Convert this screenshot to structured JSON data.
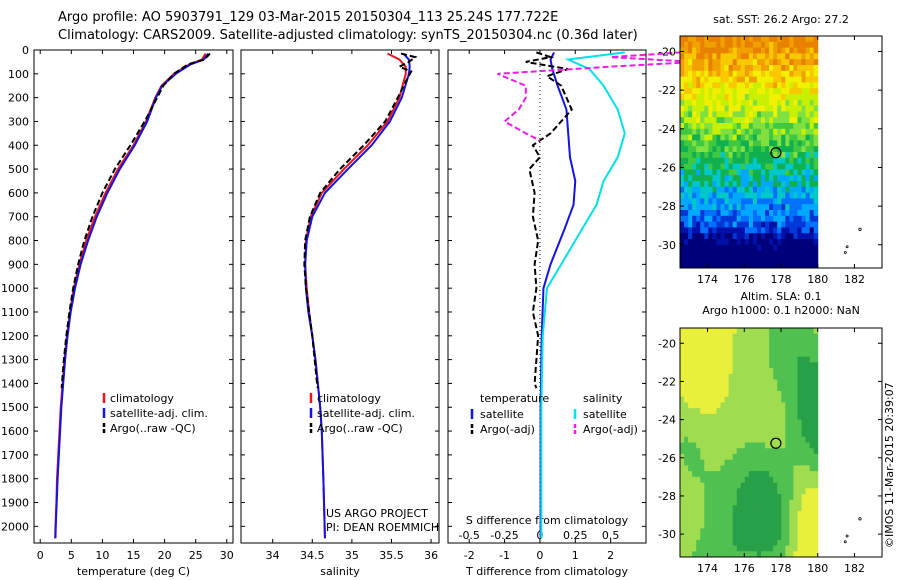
{
  "title": {
    "line1": "Argo profile: AO 5903791_129 03-Mar-2015 20150304_113 25.24S 177.722E",
    "line2": "Climatology: CARS2009. Satellite-adjusted climatology: synTS_20150304.nc (0.36d later)"
  },
  "colors": {
    "climatology": "#e8141e",
    "satellite": "#1414dc",
    "argo": "#000000",
    "sal_satellite": "#00e0e6",
    "sal_argo": "#e61ee6"
  },
  "chart_data": [
    {
      "type": "line",
      "xlabel": "temperature (deg C)",
      "xlim": [
        -1,
        31
      ],
      "xticks": [
        0,
        5,
        10,
        15,
        20,
        25,
        30
      ],
      "ylim": [
        0,
        2070
      ],
      "yticks": [
        0,
        100,
        200,
        300,
        400,
        500,
        600,
        700,
        800,
        900,
        1000,
        1100,
        1200,
        1300,
        1400,
        1500,
        1600,
        1700,
        1800,
        1900,
        2000
      ],
      "legend": [
        "climatology",
        "satellite-adj. clim.",
        "Argo(..raw -QC)"
      ],
      "series": [
        {
          "name": "climatology",
          "y": [
            15,
            40,
            60,
            100,
            150,
            200,
            300,
            400,
            500,
            600,
            700,
            800,
            900,
            1000,
            1100,
            1200,
            1300,
            1400,
            1500,
            1600,
            1700,
            1800,
            1900,
            2000,
            2050
          ],
          "x": [
            26.6,
            26,
            24,
            21.5,
            19.5,
            18.5,
            17,
            15,
            12.5,
            10.5,
            8.8,
            7.4,
            6.3,
            5.4,
            4.8,
            4.3,
            3.9,
            3.6,
            3.3,
            3.1,
            2.9,
            2.7,
            2.6,
            2.45,
            2.4
          ]
        },
        {
          "name": "satellite-adj. clim.",
          "y": [
            15,
            40,
            60,
            100,
            150,
            200,
            300,
            400,
            500,
            600,
            700,
            800,
            900,
            1000,
            1100,
            1200,
            1300,
            1400,
            1500,
            1600,
            1700,
            1800,
            1900,
            2000,
            2050
          ],
          "x": [
            27,
            26.3,
            24.2,
            21.8,
            19.6,
            18.6,
            17.2,
            15.2,
            12.8,
            10.8,
            9.1,
            7.7,
            6.5,
            5.6,
            4.9,
            4.4,
            4,
            3.7,
            3.4,
            3.2,
            3,
            2.8,
            2.65,
            2.5,
            2.45
          ]
        },
        {
          "name": "Argo(..raw -QC)",
          "y": [
            15,
            40,
            60,
            100,
            150,
            200,
            300,
            400,
            500,
            600,
            700,
            800,
            900,
            1000,
            1100,
            1200,
            1300,
            1400,
            1420
          ],
          "x": [
            27.3,
            26.4,
            23.8,
            21.5,
            19.8,
            18.8,
            16.8,
            14.5,
            12,
            10,
            8.4,
            7.1,
            6.1,
            5.3,
            4.7,
            4.2,
            3.8,
            3.5,
            3.45
          ]
        }
      ]
    },
    {
      "type": "line",
      "xlabel": "salinity",
      "xlim": [
        33.6,
        36.1
      ],
      "xticks": [
        34,
        34.5,
        35,
        35.5,
        36
      ],
      "xticklabels": [
        "34",
        "34.5",
        "35",
        "35.5",
        "36"
      ],
      "ylim": [
        0,
        2070
      ],
      "legend": [
        "climatology",
        "satellite-adj. clim.",
        "Argo(..raw -QC)"
      ],
      "series": [
        {
          "name": "climatology",
          "y": [
            15,
            40,
            70,
            100,
            200,
            300,
            400,
            500,
            600,
            700,
            800,
            900,
            1000,
            1100,
            1200,
            1300,
            1400,
            1500,
            1600,
            1800,
            2050
          ],
          "x": [
            35.45,
            35.6,
            35.68,
            35.68,
            35.6,
            35.45,
            35.2,
            34.9,
            34.62,
            34.48,
            34.42,
            34.41,
            34.43,
            34.46,
            34.5,
            34.54,
            34.57,
            34.6,
            34.62,
            34.64,
            34.66
          ]
        },
        {
          "name": "satellite-adj. clim.",
          "y": [
            15,
            40,
            70,
            100,
            200,
            300,
            400,
            500,
            600,
            700,
            800,
            900,
            1000,
            1100,
            1200,
            1300,
            1400,
            1500,
            1600,
            1800,
            2050
          ],
          "x": [
            35.65,
            35.72,
            35.73,
            35.72,
            35.63,
            35.48,
            35.25,
            34.95,
            34.66,
            34.5,
            34.43,
            34.41,
            34.42,
            34.45,
            34.5,
            34.54,
            34.57,
            34.6,
            34.62,
            34.64,
            34.66
          ]
        },
        {
          "name": "Argo(..raw -QC)",
          "y": [
            15,
            30,
            50,
            70,
            90,
            120,
            200,
            300,
            400,
            500,
            600,
            700,
            800,
            900,
            1000,
            1100,
            1200,
            1300,
            1400,
            1420
          ],
          "x": [
            35.62,
            35.8,
            35.72,
            35.6,
            35.75,
            35.7,
            35.58,
            35.42,
            35.15,
            34.85,
            34.6,
            34.47,
            34.41,
            34.4,
            34.42,
            34.46,
            34.5,
            34.53,
            34.56,
            34.57
          ]
        }
      ]
    },
    {
      "type": "line",
      "xlabel": "T difference from climatology",
      "xlabel_top": "S difference from climatology",
      "xlim": [
        -2.6,
        3
      ],
      "xticks": [
        -2,
        -1,
        0,
        1,
        2
      ],
      "xticks_top": [
        -0.5,
        -0.25,
        0,
        0.25,
        0.5
      ],
      "ylim": [
        0,
        2070
      ],
      "legend_headers": [
        "temperature",
        "salinity"
      ],
      "legend": [
        "satellite",
        "Argo(-adj)",
        "satellite",
        "Argo(-adj)"
      ],
      "series": [
        {
          "name": "satellite",
          "y": [
            10,
            40,
            80,
            150,
            250,
            350,
            450,
            550,
            650,
            750,
            900,
            1000,
            1200,
            1500,
            2050
          ],
          "x": [
            0.4,
            0.3,
            0.35,
            0.5,
            0.75,
            0.8,
            0.85,
            1,
            0.95,
            0.7,
            0.3,
            0.1,
            0.05,
            0.02,
            0.02
          ]
        },
        {
          "name": "Argo(-adj)",
          "y": [
            10,
            30,
            50,
            80,
            110,
            150,
            250,
            350,
            400,
            450,
            500,
            600,
            700,
            800,
            900,
            1000,
            1100,
            1200,
            1300,
            1400,
            1420
          ],
          "x": [
            -0.1,
            0.3,
            -0.4,
            0.8,
            0.2,
            0.6,
            0.9,
            0.3,
            -0.2,
            0,
            -0.3,
            -0.15,
            -0.2,
            -0.05,
            -0.15,
            -0.1,
            -0.2,
            -0.05,
            -0.1,
            -0.15,
            -0.1
          ]
        },
        {
          "name": "satellite",
          "y": [
            10,
            40,
            80,
            150,
            250,
            350,
            450,
            550,
            650,
            750,
            900,
            1000,
            1200,
            1500,
            2050
          ],
          "x": [
            0.6,
            0.2,
            0.35,
            0.45,
            0.55,
            0.6,
            0.55,
            0.45,
            0.4,
            0.3,
            0.15,
            0.05,
            0.02,
            0.01,
            0.01
          ]
        },
        {
          "name": "Argo(-adj)",
          "y": [
            10,
            30,
            50,
            70,
            100,
            150,
            200,
            250,
            300,
            350,
            380
          ],
          "x": [
            1,
            0.5,
            1.1,
            0.5,
            -0.3,
            -0.1,
            -0.1,
            -0.15,
            -0.25,
            -0.1,
            0
          ]
        }
      ]
    },
    {
      "type": "heatmap",
      "title": "sat. SST: 26.2 Argo: 27.2",
      "xticks": [
        174,
        176,
        178,
        180,
        182
      ],
      "yticks": [
        -20,
        -22,
        -24,
        -26,
        -28,
        -30
      ],
      "marker": {
        "lon": 177.722,
        "lat": -25.24
      }
    },
    {
      "type": "heatmap",
      "title": "Altim. SLA: 0.1",
      "subtitle": "Argo h1000: 0.1 h2000: NaN",
      "xticks": [
        174,
        176,
        178,
        180,
        182
      ],
      "yticks": [
        -20,
        -22,
        -24,
        -26,
        -28,
        -30
      ],
      "marker": {
        "lon": 177.722,
        "lat": -25.24
      }
    }
  ],
  "footer": {
    "project_line1": "US ARGO PROJECT",
    "project_line2": "PI: DEAN ROEMMICH",
    "stamp": "©IMOS 11-Mar-2015 20:39:07"
  }
}
